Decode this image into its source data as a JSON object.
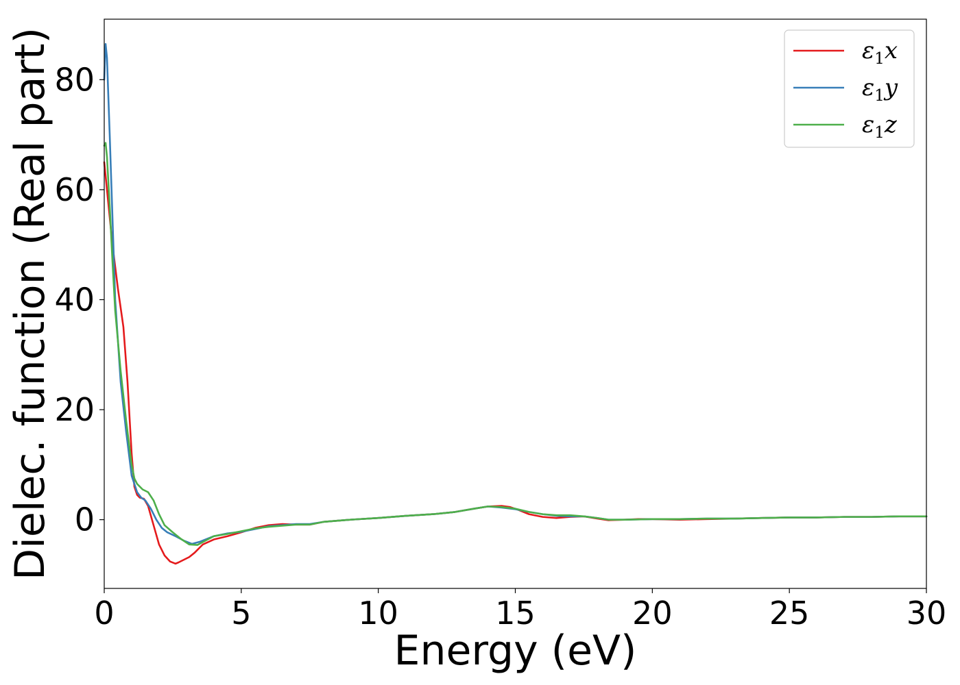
{
  "chart_data": {
    "type": "line",
    "xlabel": "Energy (eV)",
    "ylabel": "Dielec. function (Real part)",
    "xlim": [
      0,
      30
    ],
    "ylim": [
      -12.5,
      91
    ],
    "xticks": [
      0,
      5,
      10,
      15,
      20,
      25,
      30
    ],
    "yticks": [
      0,
      20,
      40,
      60,
      80
    ],
    "grid": false,
    "legend_position": "top-right",
    "series": [
      {
        "name": "ε1x",
        "legend_base": "ε",
        "legend_sub": "1",
        "legend_suffix": "x",
        "color": "#e41a1c",
        "x": [
          0,
          0.1,
          0.3,
          0.5,
          0.7,
          0.85,
          1.0,
          1.1,
          1.2,
          1.3,
          1.45,
          1.6,
          1.8,
          2.0,
          2.2,
          2.4,
          2.6,
          2.7,
          2.9,
          3.1,
          3.3,
          3.6,
          4.0,
          4.5,
          5.0,
          5.5,
          6.0,
          6.5,
          7.0,
          7.5,
          8.0,
          9.0,
          10.0,
          11.0,
          12.0,
          12.8,
          13.5,
          14.0,
          14.5,
          14.8,
          15.1,
          15.5,
          16.0,
          16.5,
          17.0,
          17.5,
          18.0,
          18.4,
          19.0,
          19.5,
          20.0,
          21.0,
          22.0,
          23.0,
          24.0,
          25.0,
          26.0,
          27.0,
          28.0,
          29.0,
          30.0
        ],
        "y": [
          65,
          60,
          50,
          42,
          35,
          25,
          12,
          6,
          4.5,
          4,
          3.8,
          2.5,
          -1,
          -4.5,
          -6.5,
          -7.6,
          -8,
          -7.8,
          -7.3,
          -6.8,
          -6,
          -4.5,
          -3.6,
          -3.0,
          -2.3,
          -1.5,
          -1.0,
          -0.8,
          -0.9,
          -0.9,
          -0.4,
          0,
          0.3,
          0.7,
          1.0,
          1.4,
          2.0,
          2.4,
          2.5,
          2.3,
          1.8,
          1.0,
          0.5,
          0.3,
          0.5,
          0.6,
          0.2,
          -0.1,
          0.0,
          0.1,
          0.1,
          0.0,
          0.1,
          0.2,
          0.3,
          0.4,
          0.4,
          0.5,
          0.5,
          0.6,
          0.6
        ]
      },
      {
        "name": "ε1y",
        "legend_base": "ε",
        "legend_sub": "1",
        "legend_suffix": "y",
        "color": "#377eb8",
        "x": [
          0,
          0.05,
          0.1,
          0.2,
          0.3,
          0.4,
          0.6,
          0.8,
          1.0,
          1.1,
          1.2,
          1.35,
          1.5,
          1.7,
          1.9,
          2.1,
          2.3,
          2.6,
          2.9,
          3.2,
          3.5,
          4.0,
          4.5,
          5.0,
          5.5,
          6.0,
          7.0,
          7.5,
          8.0,
          9.0,
          10.0,
          11.0,
          12.0,
          12.8,
          13.5,
          14.0,
          14.5,
          15.0,
          15.5,
          16.0,
          16.5,
          17.0,
          17.5,
          18.0,
          18.4,
          19.0,
          20.0,
          21.0,
          22.0,
          23.0,
          24.0,
          25.0,
          26.0,
          27.0,
          28.0,
          29.0,
          30.0
        ],
        "y": [
          80,
          86.5,
          84,
          70,
          55,
          40,
          25,
          16,
          8,
          6.5,
          5,
          4.0,
          3.5,
          2.0,
          0,
          -1.5,
          -2.3,
          -3.0,
          -3.8,
          -4.4,
          -4.0,
          -3.0,
          -2.5,
          -2.2,
          -1.7,
          -1.2,
          -0.8,
          -0.8,
          -0.4,
          0,
          0.3,
          0.7,
          1.0,
          1.4,
          2.0,
          2.4,
          2.2,
          1.9,
          1.4,
          1.0,
          0.7,
          0.6,
          0.6,
          0.3,
          0.0,
          0.0,
          0.1,
          0.1,
          0.2,
          0.2,
          0.3,
          0.4,
          0.4,
          0.5,
          0.5,
          0.6,
          0.6
        ]
      },
      {
        "name": "ε1z",
        "legend_base": "ε",
        "legend_sub": "1",
        "legend_suffix": "z",
        "color": "#4daf4a",
        "x": [
          0,
          0.05,
          0.1,
          0.2,
          0.3,
          0.4,
          0.6,
          0.8,
          1.0,
          1.1,
          1.2,
          1.4,
          1.6,
          1.8,
          2.0,
          2.2,
          2.5,
          2.8,
          3.1,
          3.4,
          3.7,
          4.0,
          4.5,
          5.0,
          5.5,
          6.0,
          7.0,
          7.5,
          8.0,
          9.0,
          10.0,
          11.0,
          12.0,
          12.8,
          13.5,
          14.0,
          14.5,
          15.0,
          15.5,
          16.0,
          16.5,
          17.0,
          17.5,
          18.0,
          18.4,
          19.0,
          20.0,
          21.0,
          22.0,
          23.0,
          24.0,
          25.0,
          26.0,
          27.0,
          28.0,
          29.0,
          30.0
        ],
        "y": [
          68,
          68.5,
          66,
          57,
          47,
          38,
          27,
          18,
          10,
          7.5,
          6.5,
          5.5,
          5.0,
          3.5,
          1.0,
          -1.0,
          -2.3,
          -3.5,
          -4.5,
          -4.6,
          -3.8,
          -3.0,
          -2.6,
          -2.1,
          -1.6,
          -1.3,
          -0.9,
          -0.9,
          -0.4,
          0,
          0.3,
          0.7,
          1.0,
          1.4,
          2.0,
          2.4,
          2.3,
          2.0,
          1.4,
          1.0,
          0.8,
          0.8,
          0.6,
          0.3,
          0.0,
          0.0,
          0.1,
          0.1,
          0.2,
          0.2,
          0.3,
          0.4,
          0.4,
          0.5,
          0.5,
          0.6,
          0.6
        ]
      }
    ]
  }
}
